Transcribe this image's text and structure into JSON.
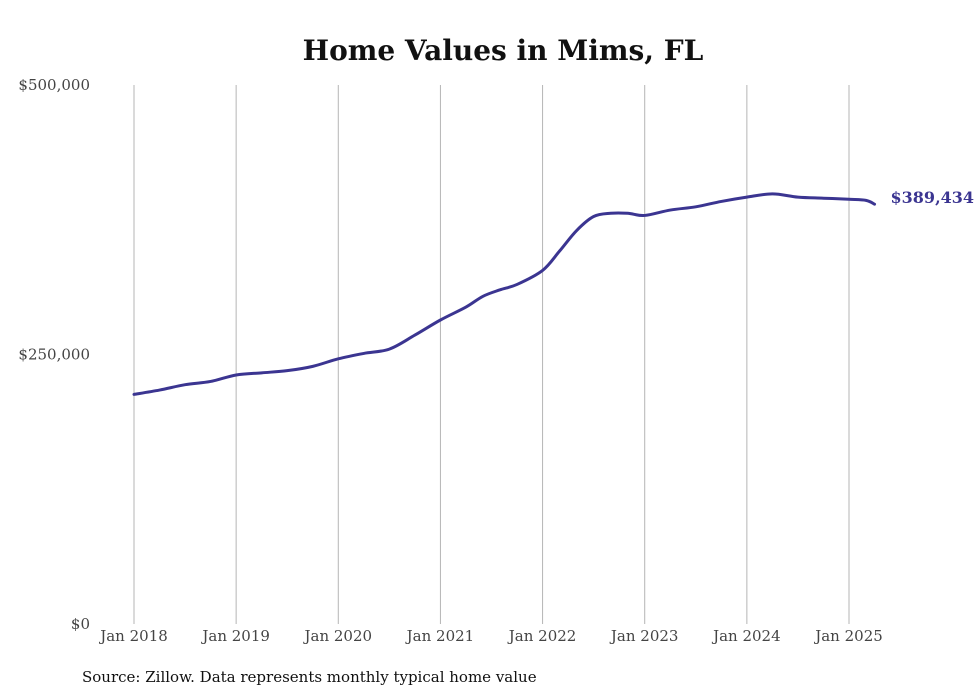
{
  "chart_data": {
    "type": "line",
    "title": "Home Values in Mims, FL",
    "xlabel": "",
    "ylabel": "",
    "ylim": [
      0,
      500000
    ],
    "y_ticks": [
      {
        "value": 0,
        "label": "$0"
      },
      {
        "value": 250000,
        "label": "$250,000"
      },
      {
        "value": 500000,
        "label": "$500,000"
      }
    ],
    "x_ticks": [
      {
        "value": "2018-01",
        "label": "Jan 2018"
      },
      {
        "value": "2019-01",
        "label": "Jan 2019"
      },
      {
        "value": "2020-01",
        "label": "Jan 2020"
      },
      {
        "value": "2021-01",
        "label": "Jan 2021"
      },
      {
        "value": "2022-01",
        "label": "Jan 2022"
      },
      {
        "value": "2023-01",
        "label": "Jan 2023"
      },
      {
        "value": "2024-01",
        "label": "Jan 2024"
      },
      {
        "value": "2025-01",
        "label": "Jan 2025"
      }
    ],
    "grid": {
      "vertical": true,
      "horizontal": false
    },
    "legend": "none",
    "series": [
      {
        "color": "#3b3591",
        "end_label": "$389,434",
        "points": [
          {
            "x": "2018-01",
            "y": 213000
          },
          {
            "x": "2018-04",
            "y": 217000
          },
          {
            "x": "2018-07",
            "y": 222000
          },
          {
            "x": "2018-10",
            "y": 225000
          },
          {
            "x": "2019-01",
            "y": 231000
          },
          {
            "x": "2019-04",
            "y": 233000
          },
          {
            "x": "2019-07",
            "y": 235000
          },
          {
            "x": "2019-10",
            "y": 239000
          },
          {
            "x": "2020-01",
            "y": 246000
          },
          {
            "x": "2020-04",
            "y": 251000
          },
          {
            "x": "2020-07",
            "y": 255000
          },
          {
            "x": "2020-10",
            "y": 268000
          },
          {
            "x": "2021-01",
            "y": 282000
          },
          {
            "x": "2021-04",
            "y": 294000
          },
          {
            "x": "2021-06",
            "y": 304000
          },
          {
            "x": "2021-08",
            "y": 310000
          },
          {
            "x": "2021-10",
            "y": 315000
          },
          {
            "x": "2022-01",
            "y": 328000
          },
          {
            "x": "2022-03",
            "y": 346000
          },
          {
            "x": "2022-05",
            "y": 365000
          },
          {
            "x": "2022-07",
            "y": 378000
          },
          {
            "x": "2022-09",
            "y": 381000
          },
          {
            "x": "2022-11",
            "y": 381000
          },
          {
            "x": "2023-01",
            "y": 379000
          },
          {
            "x": "2023-04",
            "y": 384000
          },
          {
            "x": "2023-07",
            "y": 387000
          },
          {
            "x": "2023-10",
            "y": 392000
          },
          {
            "x": "2024-01",
            "y": 396000
          },
          {
            "x": "2024-04",
            "y": 399000
          },
          {
            "x": "2024-07",
            "y": 396000
          },
          {
            "x": "2024-10",
            "y": 395000
          },
          {
            "x": "2025-01",
            "y": 394000
          },
          {
            "x": "2025-03",
            "y": 393000
          },
          {
            "x": "2025-04",
            "y": 389434
          }
        ]
      }
    ]
  },
  "source_note": "Source: Zillow. Data represents monthly typical home value"
}
